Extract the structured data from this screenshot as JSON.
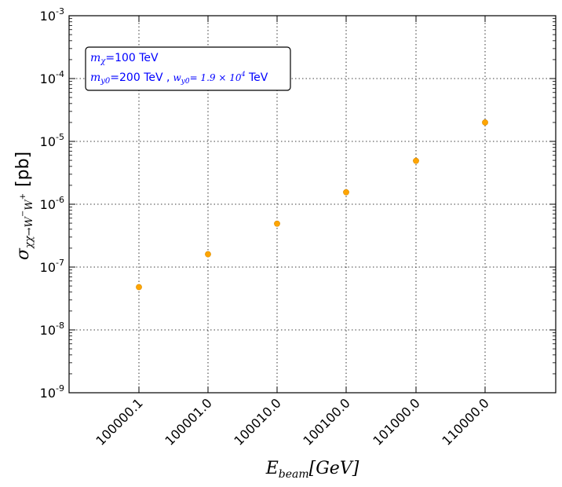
{
  "chart_data": {
    "type": "scatter",
    "x_tick_labels": [
      "100000.1",
      "100001.0",
      "100010.0",
      "100100.0",
      "101000.0",
      "110000.0"
    ],
    "y_tick_labels": [
      {
        "base": "10",
        "exp": "-9"
      },
      {
        "base": "10",
        "exp": "-8"
      },
      {
        "base": "10",
        "exp": "-7"
      },
      {
        "base": "10",
        "exp": "-6"
      },
      {
        "base": "10",
        "exp": "-5"
      },
      {
        "base": "10",
        "exp": "-4"
      },
      {
        "base": "10",
        "exp": "-3"
      }
    ],
    "ylim": [
      1e-09,
      0.001
    ],
    "y_scale": "log",
    "grid": true,
    "marker_color": "#ffa500",
    "points": [
      {
        "x": "100000.1",
        "y": 4.8e-08
      },
      {
        "x": "100001.0",
        "y": 1.6e-07
      },
      {
        "x": "100010.0",
        "y": 4.9e-07
      },
      {
        "x": "100100.0",
        "y": 1.55e-06
      },
      {
        "x": "101000.0",
        "y": 4.9e-06
      },
      {
        "x": "110000.0",
        "y": 2e-05
      }
    ],
    "xlabel": {
      "main": "E",
      "sub": "beam",
      "rest": "[GeV]"
    },
    "ylabel": {
      "main": "σ",
      "sub": "χχ→W",
      "sup1": "−",
      "mid": "W",
      "sup2": "+",
      "unit": "[pb]"
    },
    "legend": {
      "placement": "top-left",
      "line1": {
        "sym": "m",
        "sub": "χ",
        "text": "=100 TeV"
      },
      "line2": {
        "sym": "m",
        "sub": "y0",
        "text": "=200 TeV ,",
        "sym2": "w",
        "sub2": "y0",
        "eq": "= 1.9 × 10",
        "exp": "4",
        "unit": " TeV"
      }
    }
  }
}
